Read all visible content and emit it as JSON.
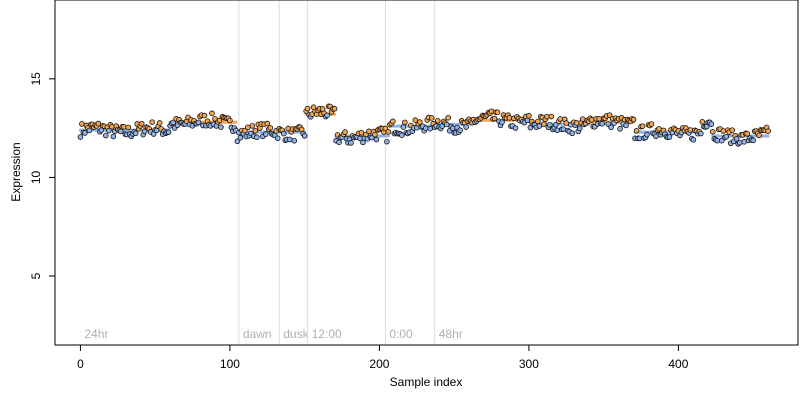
{
  "chart_data": {
    "type": "scatter",
    "xlabel": "Sample index",
    "ylabel": "Expression",
    "xlim": [
      -17,
      480
    ],
    "ylim": [
      1.5,
      19
    ],
    "x_ticks": [
      0,
      100,
      200,
      300,
      400
    ],
    "y_ticks": [
      5,
      10,
      15
    ],
    "grid": false,
    "legend": "none",
    "phase_markers": [
      {
        "label": "24hr",
        "x": 0,
        "line": false
      },
      {
        "label": "dawn",
        "x": 106,
        "line": true
      },
      {
        "label": "dusk",
        "x": 133,
        "line": true
      },
      {
        "label": "12:00",
        "x": 152,
        "line": true
      },
      {
        "label": "0:00",
        "x": 204,
        "line": true
      },
      {
        "label": "48hr",
        "x": 237,
        "line": true
      }
    ],
    "segments": [
      {
        "from": 0,
        "to": 59,
        "level": 12.4,
        "color": "#8fb3e8"
      },
      {
        "from": 60,
        "to": 104,
        "level": 12.8,
        "color": "#f2a654"
      },
      {
        "from": 105,
        "to": 150,
        "level": 12.3,
        "color": "#8fb3e8"
      },
      {
        "from": 151,
        "to": 170,
        "level": 13.2,
        "color": "#f2a654"
      },
      {
        "from": 171,
        "to": 206,
        "level": 12.1,
        "color": "#8fb3e8"
      },
      {
        "from": 207,
        "to": 236,
        "level": 12.6,
        "color": "#8fb3e8"
      },
      {
        "from": 237,
        "to": 262,
        "level": 12.7,
        "color": "#8fb3e8"
      },
      {
        "from": 263,
        "to": 300,
        "level": 12.9,
        "color": "#f2a654"
      },
      {
        "from": 301,
        "to": 340,
        "level": 12.7,
        "color": "#8fb3e8"
      },
      {
        "from": 341,
        "to": 370,
        "level": 12.8,
        "color": "#f2a654"
      },
      {
        "from": 371,
        "to": 415,
        "level": 12.3,
        "color": "#8fb3e8"
      },
      {
        "from": 416,
        "to": 422,
        "level": 12.8,
        "color": "#f2a654"
      },
      {
        "from": 423,
        "to": 460,
        "level": 12.1,
        "color": "#8fb3e8"
      }
    ],
    "series": [
      {
        "color_low": "#8fb3e8",
        "color_high": "#f2a654",
        "point_count": 461,
        "y_range": [
          11.7,
          13.8
        ]
      }
    ]
  }
}
